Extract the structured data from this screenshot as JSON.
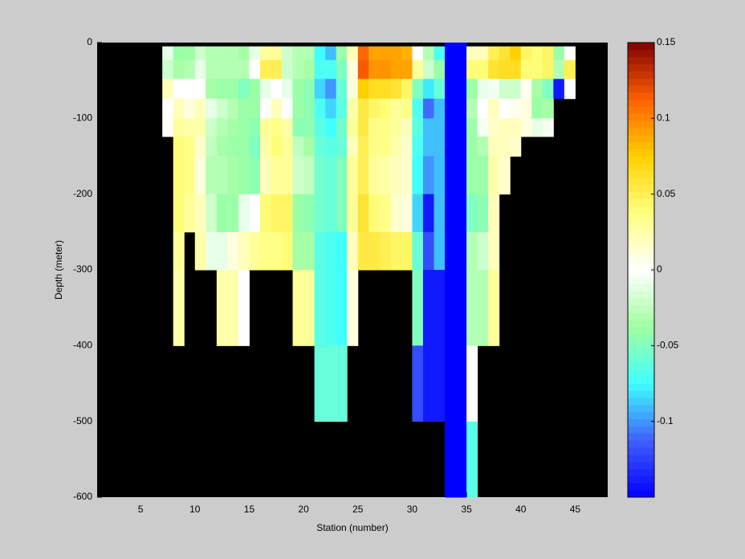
{
  "chart_data": {
    "type": "heatmap",
    "xlabel": "Station (number)",
    "ylabel": "Depth (meter)",
    "xlim": [
      1,
      48
    ],
    "xticks": [
      5,
      10,
      15,
      20,
      25,
      30,
      35,
      40,
      45
    ],
    "ylim": [
      -600,
      0
    ],
    "yticks": [
      -600,
      -500,
      -400,
      -300,
      -200,
      -100,
      0
    ],
    "clim": [
      -0.15,
      0.15
    ],
    "cticks": [
      -0.1,
      -0.05,
      0,
      0.05,
      0.1,
      0.15
    ],
    "colormap": [
      "#0000ff",
      "#4060ff",
      "#40ffff",
      "#a0ffa0",
      "#ffffff",
      "#ffff80",
      "#ffd000",
      "#ff6000",
      "#800000"
    ],
    "x": [
      7,
      8,
      9,
      10,
      11,
      12,
      13,
      14,
      15,
      16,
      17,
      18,
      19,
      20,
      21,
      22,
      23,
      24,
      25,
      26,
      27,
      28,
      29,
      30,
      31,
      32,
      33,
      34,
      35,
      36,
      37,
      38,
      39,
      40,
      41,
      42,
      43,
      44,
      45
    ],
    "y": [
      0,
      -5,
      -23,
      -48,
      -74,
      -100,
      -124,
      -150,
      -200,
      -250,
      -300,
      -400,
      -500,
      -600
    ],
    "values": [
      [
        null,
        -0.01,
        -0.02,
        0.02,
        0,
        0,
        null,
        null,
        null,
        null,
        null,
        null,
        null
      ],
      [
        null,
        -0.04,
        -0.035,
        0,
        0.02,
        0.03,
        0.04,
        0.04,
        0.04,
        0.03,
        0.025,
        null,
        null
      ],
      [
        null,
        -0.04,
        -0.03,
        0,
        0.01,
        0.025,
        0.035,
        0.035,
        0.03,
        null,
        null,
        null,
        null
      ],
      [
        null,
        -0.02,
        -0.01,
        0,
        0.02,
        0.025,
        0.015,
        0.01,
        0.02,
        0.025,
        null,
        null,
        null
      ],
      [
        null,
        -0.03,
        -0.03,
        -0.035,
        -0.01,
        -0.02,
        -0.025,
        -0.03,
        -0.02,
        -0.01,
        null,
        null,
        null
      ],
      [
        null,
        -0.03,
        -0.03,
        -0.04,
        -0.02,
        -0.03,
        -0.035,
        -0.03,
        -0.04,
        -0.01,
        0.025,
        null,
        null
      ],
      [
        null,
        -0.03,
        -0.03,
        -0.04,
        -0.03,
        -0.035,
        -0.04,
        -0.035,
        -0.04,
        0.01,
        0.025,
        null,
        null
      ],
      [
        null,
        -0.035,
        -0.03,
        -0.05,
        -0.04,
        -0.04,
        -0.04,
        -0.04,
        -0.01,
        0.02,
        0,
        null,
        null
      ],
      [
        null,
        -0.01,
        0,
        -0.04,
        -0.04,
        -0.045,
        -0.05,
        -0.045,
        0,
        0.03,
        null,
        null,
        null
      ],
      [
        null,
        0.03,
        0.05,
        -0.01,
        0,
        0.03,
        0.025,
        0.02,
        0.04,
        0.035,
        null,
        null,
        null
      ],
      [
        null,
        0.03,
        0.05,
        0,
        0.02,
        0.035,
        0.04,
        0.03,
        0.045,
        0.035,
        null,
        null,
        null
      ],
      [
        null,
        -0.02,
        -0.02,
        -0.01,
        0,
        0.025,
        0.03,
        0.03,
        0.045,
        0.04,
        null,
        null,
        null
      ],
      [
        null,
        -0.03,
        -0.03,
        -0.04,
        -0.04,
        -0.045,
        -0.025,
        -0.02,
        -0.04,
        -0.035,
        0.03,
        null,
        null
      ],
      [
        null,
        -0.03,
        -0.035,
        -0.045,
        -0.045,
        -0.045,
        -0.035,
        -0.025,
        -0.045,
        -0.035,
        0.03,
        null,
        null
      ],
      [
        null,
        -0.075,
        -0.07,
        -0.085,
        -0.07,
        -0.065,
        -0.06,
        -0.055,
        -0.055,
        -0.065,
        -0.065,
        -0.06,
        null
      ],
      [
        null,
        -0.09,
        -0.07,
        -0.1,
        -0.085,
        -0.075,
        -0.065,
        -0.06,
        -0.06,
        -0.07,
        -0.07,
        -0.06,
        null
      ],
      [
        null,
        -0.04,
        -0.05,
        -0.06,
        -0.065,
        -0.055,
        -0.06,
        -0.05,
        -0.05,
        -0.075,
        -0.075,
        -0.06,
        null
      ],
      [
        null,
        0.02,
        0.01,
        0.01,
        0.025,
        0.03,
        0.02,
        0.03,
        0.03,
        0.02,
        0.01,
        null,
        null
      ],
      [
        null,
        0.11,
        0.115,
        0.075,
        0.055,
        0.055,
        0.05,
        0.05,
        0.06,
        0.055,
        null,
        null,
        null
      ],
      [
        null,
        0.09,
        0.095,
        0.065,
        0.045,
        0.035,
        0.035,
        0.03,
        0.04,
        0.055,
        null,
        null,
        null
      ],
      [
        null,
        0.09,
        0.095,
        0.065,
        0.04,
        0.035,
        0.035,
        0.025,
        0.035,
        0.05,
        null,
        null,
        null
      ],
      [
        null,
        0.09,
        0.09,
        0.06,
        0.03,
        0.03,
        0.025,
        0.02,
        0.015,
        0.045,
        null,
        null,
        null
      ],
      [
        null,
        0.085,
        0.09,
        0.045,
        0.035,
        0.02,
        0.015,
        0.015,
        0.01,
        0.045,
        null,
        null,
        null
      ],
      [
        null,
        0,
        0.03,
        -0.05,
        -0.07,
        -0.065,
        -0.07,
        -0.075,
        -0.085,
        -0.06,
        -0.05,
        -0.12,
        null
      ],
      [
        null,
        -0.03,
        -0.02,
        -0.08,
        -0.11,
        -0.09,
        -0.09,
        -0.1,
        -0.14,
        -0.12,
        -0.14,
        -0.14,
        null
      ],
      [
        null,
        -0.07,
        -0.04,
        -0.06,
        -0.09,
        -0.09,
        -0.09,
        -0.09,
        -0.09,
        -0.09,
        -0.14,
        -0.14,
        null
      ],
      [
        -0.15,
        -0.15,
        -0.15,
        -0.15,
        -0.15,
        -0.15,
        -0.15,
        -0.15,
        -0.15,
        -0.15,
        -0.15,
        -0.15,
        -0.15
      ],
      [
        -0.15,
        -0.15,
        -0.15,
        -0.15,
        -0.15,
        -0.15,
        -0.15,
        -0.15,
        -0.15,
        -0.15,
        -0.15,
        -0.15,
        -0.15
      ],
      [
        null,
        0.02,
        0.04,
        -0.04,
        -0.03,
        -0.04,
        -0.04,
        -0.04,
        -0.05,
        -0.03,
        -0.03,
        0,
        -0.065
      ],
      [
        null,
        0.02,
        0.04,
        -0.01,
        0,
        -0.005,
        -0.03,
        -0.04,
        -0.045,
        -0.02,
        -0.03,
        null,
        null
      ],
      [
        null,
        0.05,
        0.06,
        -0.005,
        0.02,
        0.015,
        0.02,
        0.025,
        0.02,
        0.02,
        0.03,
        null,
        null
      ],
      [
        null,
        0.06,
        0.065,
        -0.02,
        0,
        0.02,
        0.02,
        0.015,
        null,
        null,
        null,
        null,
        null
      ],
      [
        null,
        0.075,
        0.065,
        -0.02,
        0.005,
        0.02,
        0.015,
        null,
        null,
        null,
        null,
        null,
        null
      ],
      [
        null,
        0.045,
        0.04,
        0.005,
        0.01,
        0.01,
        null,
        null,
        null,
        null,
        null,
        null,
        null
      ],
      [
        null,
        0.04,
        0.04,
        -0.035,
        -0.04,
        -0.01,
        null,
        null,
        null,
        null,
        null,
        null,
        null
      ],
      [
        null,
        0.045,
        0.045,
        -0.05,
        -0.035,
        -0.005,
        null,
        null,
        null,
        null,
        null,
        null,
        null
      ],
      [
        null,
        -0.04,
        -0.03,
        -0.14,
        null,
        null,
        null,
        null,
        null,
        null,
        null,
        null,
        null
      ],
      [
        null,
        0,
        0.05,
        0,
        null,
        null,
        null,
        null,
        null,
        null,
        null,
        null,
        null
      ]
    ]
  }
}
